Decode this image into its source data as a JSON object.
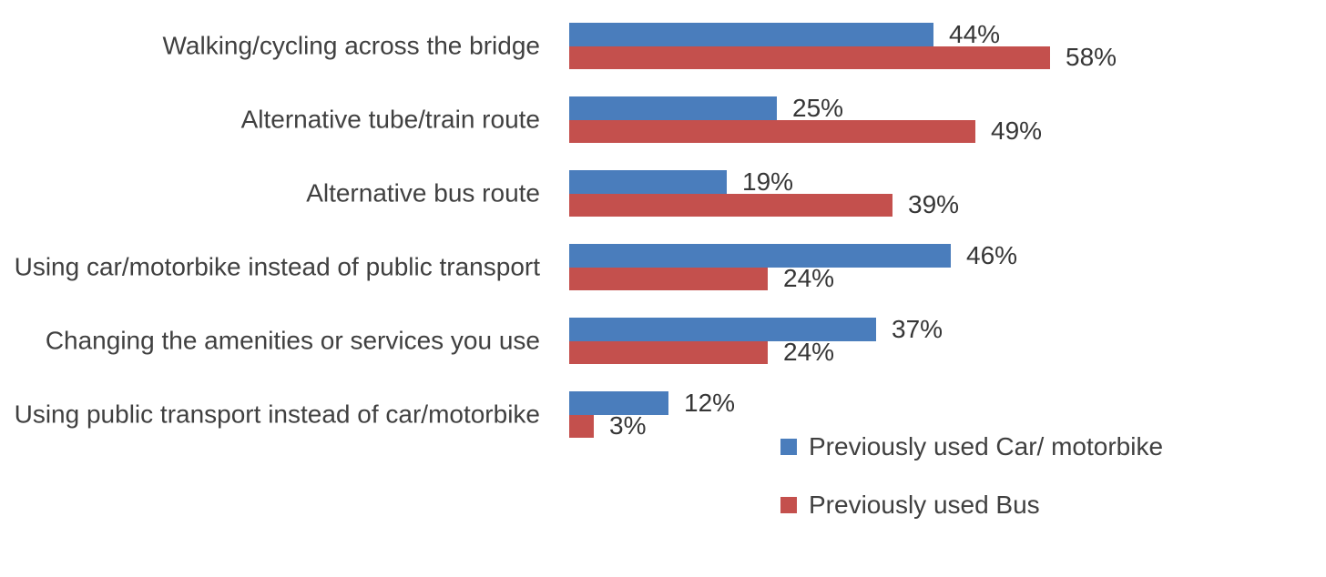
{
  "chart_data": {
    "type": "bar",
    "orientation": "horizontal",
    "title": "",
    "categories": [
      "Walking/cycling across the bridge",
      "Alternative tube/train route",
      "Alternative bus route",
      "Using car/motorbike instead of public transport",
      "Changing the amenities or services you use",
      "Using public transport instead of car/motorbike"
    ],
    "series": [
      {
        "name": "Previously used Car/ motorbike",
        "color": "#4A7DBC",
        "values": [
          44,
          25,
          19,
          46,
          37,
          12
        ]
      },
      {
        "name": "Previously used Bus",
        "color": "#C4504D",
        "values": [
          58,
          49,
          39,
          24,
          24,
          3
        ]
      }
    ],
    "value_suffix": "%",
    "xlim": [
      0,
      70
    ],
    "grid": false,
    "data_labels": true,
    "legend_position": "bottom-right",
    "text_color": "#404040"
  }
}
